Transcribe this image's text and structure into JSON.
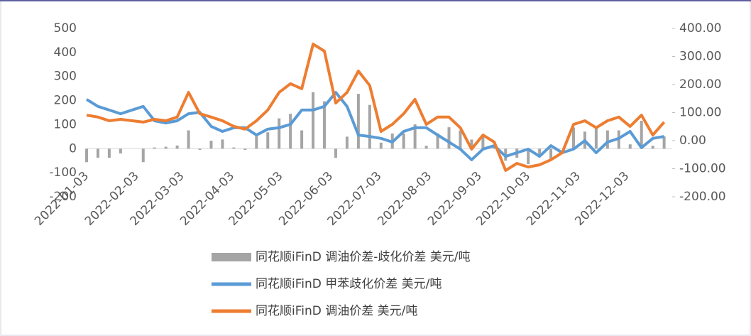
{
  "chart_data": {
    "type": "combo",
    "x": [
      "2022-01-03",
      "2022-01-10",
      "2022-01-17",
      "2022-01-24",
      "2022-02-07",
      "2022-02-14",
      "2022-02-21",
      "2022-02-28",
      "2022-03-07",
      "2022-03-14",
      "2022-03-21",
      "2022-03-28",
      "2022-04-04",
      "2022-04-11",
      "2022-04-18",
      "2022-04-25",
      "2022-05-02",
      "2022-05-09",
      "2022-05-16",
      "2022-05-23",
      "2022-05-30",
      "2022-06-06",
      "2022-06-13",
      "2022-06-20",
      "2022-06-27",
      "2022-07-04",
      "2022-07-11",
      "2022-07-18",
      "2022-07-25",
      "2022-08-01",
      "2022-08-08",
      "2022-08-15",
      "2022-08-22",
      "2022-08-29",
      "2022-09-05",
      "2022-09-12",
      "2022-09-19",
      "2022-09-26",
      "2022-10-03",
      "2022-10-10",
      "2022-10-17",
      "2022-10-24",
      "2022-10-31",
      "2022-11-07",
      "2022-11-14",
      "2022-11-21",
      "2022-11-28",
      "2022-12-05",
      "2022-12-12",
      "2022-12-19",
      "2022-12-26"
    ],
    "xlim": [
      "2022-01-03",
      "2022-12-31"
    ],
    "xticks": [
      "2022-01-03",
      "2022-02-03",
      "2022-03-03",
      "2022-04-03",
      "2022-05-03",
      "2022-06-03",
      "2022-07-03",
      "2022-08-03",
      "2022-09-03",
      "2022-10-03",
      "2022-11-03",
      "2022-12-03"
    ],
    "ylim": [
      -200,
      500
    ],
    "yticks": [
      -200,
      -100,
      0,
      100,
      200,
      300,
      400,
      500
    ],
    "y2lim": [
      -200,
      400
    ],
    "y2ticks": [
      {
        "value": -200,
        "label": "-200.00"
      },
      {
        "value": -100,
        "label": "-100.00"
      },
      {
        "value": 0,
        "label": "0.00"
      },
      {
        "value": 100,
        "label": "100.00"
      },
      {
        "value": 200,
        "label": "200.00"
      },
      {
        "value": 300,
        "label": "300.00"
      },
      {
        "value": 400,
        "label": "400.00"
      }
    ],
    "series": [
      {
        "name": "同花顺iFinD 调油价差-歧化价差 美元/吨",
        "kind": "bar",
        "color": "#a5a5a5",
        "values": [
          -56,
          -38,
          -38,
          -20,
          -56,
          5,
          8,
          13,
          76,
          -5,
          33,
          38,
          5,
          -5,
          51,
          68,
          126,
          145,
          76,
          235,
          197,
          -38,
          50,
          228,
          182,
          25,
          63,
          63,
          101,
          12,
          64,
          89,
          76,
          38,
          50,
          13,
          -50,
          -38,
          -64,
          -30,
          -50,
          0,
          88,
          71,
          89,
          76,
          76,
          18,
          116,
          12,
          51
        ]
      },
      {
        "name": "同花顺iFinD 甲苯歧化价差 美元/吨",
        "kind": "line",
        "axis": "y2",
        "color": "#5b9bd5",
        "values": [
          147,
          122,
          109,
          96,
          122,
          71,
          63,
          71,
          96,
          101,
          51,
          33,
          46,
          46,
          20,
          41,
          46,
          58,
          109,
          109,
          122,
          172,
          122,
          20,
          15,
          8,
          -5,
          33,
          46,
          46,
          20,
          -5,
          -30,
          -68,
          -30,
          -18,
          -56,
          -43,
          -30,
          -56,
          -18,
          -43,
          -30,
          0,
          -43,
          -5,
          8,
          33,
          -25,
          8,
          15
        ]
      },
      {
        "name": "同花顺iFinD 调油价差 美元/吨",
        "kind": "line",
        "axis": "y2",
        "color": "#ed7d31",
        "values": [
          91,
          84,
          71,
          76,
          66,
          76,
          71,
          84,
          172,
          96,
          84,
          71,
          51,
          41,
          71,
          109,
          172,
          203,
          185,
          344,
          319,
          134,
          172,
          248,
          197,
          33,
          58,
          96,
          147,
          58,
          84,
          84,
          46,
          -30,
          20,
          -5,
          -106,
          -81,
          -94,
          -86,
          -68,
          -43,
          58,
          71,
          46,
          71,
          84,
          51,
          91,
          20,
          66
        ]
      }
    ]
  }
}
